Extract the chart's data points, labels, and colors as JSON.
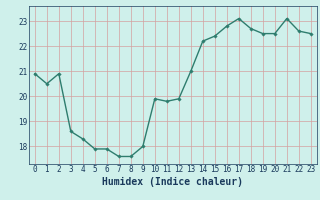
{
  "x": [
    0,
    1,
    2,
    3,
    4,
    5,
    6,
    7,
    8,
    9,
    10,
    11,
    12,
    13,
    14,
    15,
    16,
    17,
    18,
    19,
    20,
    21,
    22,
    23
  ],
  "y": [
    20.9,
    20.5,
    20.9,
    18.6,
    18.3,
    17.9,
    17.9,
    17.6,
    17.6,
    18.0,
    19.9,
    19.8,
    19.9,
    21.0,
    22.2,
    22.4,
    22.8,
    23.1,
    22.7,
    22.5,
    22.5,
    23.1,
    22.6,
    22.5
  ],
  "xlim": [
    -0.5,
    23.5
  ],
  "ylim": [
    17.3,
    23.6
  ],
  "yticks": [
    18,
    19,
    20,
    21,
    22,
    23
  ],
  "xticks": [
    0,
    1,
    2,
    3,
    4,
    5,
    6,
    7,
    8,
    9,
    10,
    11,
    12,
    13,
    14,
    15,
    16,
    17,
    18,
    19,
    20,
    21,
    22,
    23
  ],
  "xlabel": "Humidex (Indice chaleur)",
  "line_color": "#2e7d6e",
  "marker": "D",
  "marker_size": 1.8,
  "line_width": 1.0,
  "bg_color": "#cff0eb",
  "grid_color": "#d4a0a0",
  "tick_color": "#1a3a5c",
  "xlabel_color": "#1a3a5c",
  "tick_fontsize": 5.5,
  "xlabel_fontsize": 7.0
}
